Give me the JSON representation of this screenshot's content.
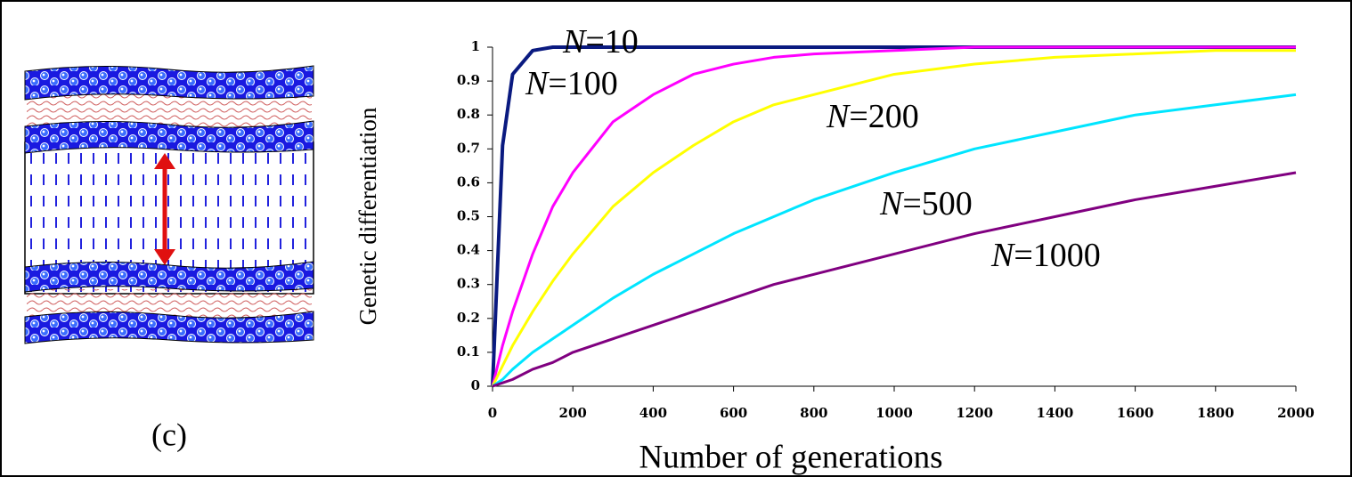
{
  "panel_label": "(c)",
  "chart_data": {
    "type": "line",
    "x_label": "Number of generations",
    "y_label": "Genetic differentiation",
    "x": [
      0,
      25,
      50,
      100,
      150,
      200,
      300,
      400,
      500,
      600,
      700,
      800,
      1000,
      1200,
      1400,
      1600,
      1800,
      2000
    ],
    "series": [
      {
        "name": "N=10",
        "color": "#0a1a80",
        "values": [
          0,
          0.71,
          0.92,
          0.99,
          1,
          1,
          1,
          1,
          1,
          1,
          1,
          1,
          1,
          1,
          1,
          1,
          1,
          1
        ]
      },
      {
        "name": "N=100",
        "color": "#ff00ff",
        "values": [
          0,
          0.12,
          0.22,
          0.39,
          0.53,
          0.63,
          0.78,
          0.86,
          0.92,
          0.95,
          0.97,
          0.98,
          0.99,
          1,
          1,
          1,
          1,
          1
        ]
      },
      {
        "name": "N=200",
        "color": "#ffff00",
        "values": [
          0,
          0.06,
          0.12,
          0.22,
          0.31,
          0.39,
          0.53,
          0.63,
          0.71,
          0.78,
          0.83,
          0.86,
          0.92,
          0.95,
          0.97,
          0.98,
          0.99,
          0.99
        ]
      },
      {
        "name": "N=500",
        "color": "#00e5ff",
        "values": [
          0,
          0.02,
          0.05,
          0.1,
          0.14,
          0.18,
          0.26,
          0.33,
          0.39,
          0.45,
          0.5,
          0.55,
          0.63,
          0.7,
          0.75,
          0.8,
          0.83,
          0.86
        ]
      },
      {
        "name": "N=1000",
        "color": "#800080",
        "values": [
          0,
          0.01,
          0.02,
          0.05,
          0.07,
          0.1,
          0.14,
          0.18,
          0.22,
          0.26,
          0.3,
          0.33,
          0.39,
          0.45,
          0.5,
          0.55,
          0.59,
          0.63
        ]
      }
    ],
    "xlim": [
      0,
      2000
    ],
    "xticks": [
      0,
      200,
      400,
      600,
      800,
      1000,
      1200,
      1400,
      1600,
      1800,
      2000
    ],
    "ylim": [
      0,
      1
    ],
    "yticks": [
      0,
      0.1,
      0.2,
      0.3,
      0.4,
      0.5,
      0.6,
      0.7,
      0.8,
      0.9,
      1
    ]
  }
}
